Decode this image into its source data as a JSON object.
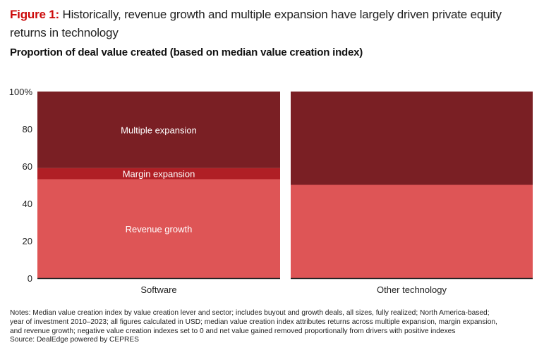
{
  "figure": {
    "label": "Figure 1:",
    "title": "Historically, revenue growth and multiple expansion have largely driven private equity returns in technology",
    "subtitle": "Proportion of deal value created (based on median value creation index)"
  },
  "colors": {
    "figure_label": "#cc0a0a",
    "revenue_growth": "#de5556",
    "margin_expansion": "#b01f25",
    "multiple_expansion": "#7a1f24",
    "baseline": "#222222",
    "segment_label": "#ffffff"
  },
  "chart_data": {
    "type": "bar",
    "stacked": true,
    "title": "Proportion of deal value created (based on median value creation index)",
    "xlabel": "",
    "ylabel": "",
    "categories": [
      "Software",
      "Other technology"
    ],
    "series": [
      {
        "name": "Revenue growth",
        "values": [
          53,
          50
        ],
        "color": "#de5556"
      },
      {
        "name": "Margin expansion",
        "values": [
          6,
          0
        ],
        "color": "#b01f25"
      },
      {
        "name": "Multiple expansion",
        "values": [
          41,
          50
        ],
        "color": "#7a1f24"
      }
    ],
    "segment_labels": [
      {
        "category": "Software",
        "series": "Multiple expansion",
        "text": "Multiple expansion"
      },
      {
        "category": "Software",
        "series": "Margin expansion",
        "text": "Margin expansion"
      },
      {
        "category": "Software",
        "series": "Revenue growth",
        "text": "Revenue growth"
      }
    ],
    "ylim": [
      0,
      100
    ],
    "yticks": [
      0,
      20,
      40,
      60,
      80,
      100
    ],
    "ytick_labels": [
      "0",
      "20",
      "40",
      "60",
      "80",
      "100%"
    ],
    "grid": false,
    "legend": "none (inline labels)"
  },
  "notes": {
    "lines": [
      "Notes: Median value creation index by value creation lever and sector; includes buyout and growth deals, all sizes, fully realized; North America-based;",
      "year of investment 2010–2023; all figures calculated in USD; median value creation index attributes returns across multiple expansion, margin expansion,",
      "and revenue growth; negative value creation indexes set to 0 and net value gained removed proportionally from drivers with positive indexes"
    ],
    "source": "Source: DealEdge powered by CEPRES"
  }
}
